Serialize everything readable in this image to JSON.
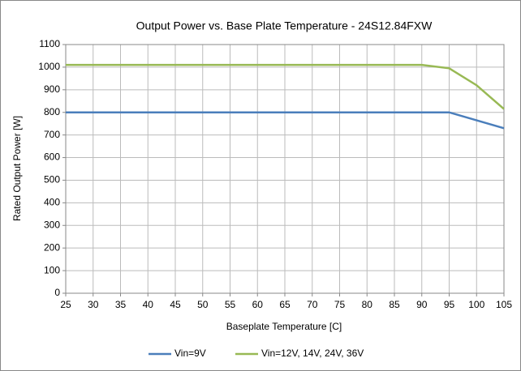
{
  "chart_data": {
    "type": "line",
    "title": "Output Power vs. Base Plate Temperature - 24S12.84FXW",
    "xlabel": "Baseplate Temperature [C]",
    "ylabel": "Rated Output Power [W]",
    "series": [
      {
        "name": "Vin=9V",
        "color": "#4a7ebb",
        "x": [
          25,
          95,
          105
        ],
        "values": [
          800,
          800,
          730
        ]
      },
      {
        "name": "Vin=12V, 14V, 24V, 36V",
        "color": "#98b954",
        "x": [
          25,
          90,
          95,
          100,
          105
        ],
        "values": [
          1010,
          1010,
          995,
          920,
          815
        ]
      }
    ],
    "xlim": [
      25,
      105
    ],
    "xticks": [
      25,
      30,
      35,
      40,
      45,
      50,
      55,
      60,
      65,
      70,
      75,
      80,
      85,
      90,
      95,
      100,
      105
    ],
    "ylim": [
      0,
      1100
    ],
    "yticks": [
      0,
      100,
      200,
      300,
      400,
      500,
      600,
      700,
      800,
      900,
      1000,
      1100
    ],
    "grid": true,
    "legend": "bottom"
  }
}
